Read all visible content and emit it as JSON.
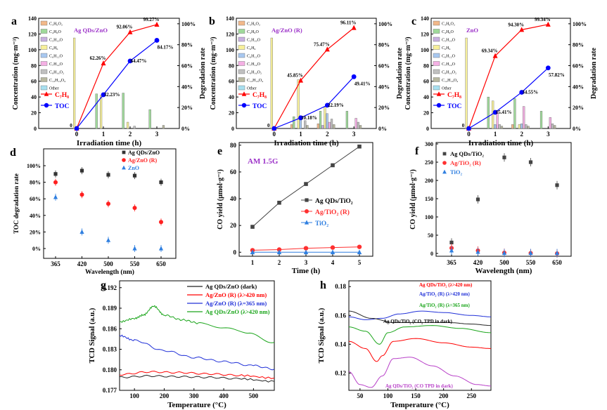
{
  "colors": {
    "red": "#ff0000",
    "blue": "#0000ff",
    "black": "#222222",
    "green": "#1aa51a",
    "purple": "#b840c8",
    "grey": "#555555",
    "lightblue": "#2f7fe0",
    "pink": "#e84a4a"
  },
  "chart_data": [
    {
      "id": "a",
      "letter": "a",
      "type": "bar",
      "title": "Ag QDs/ZnO",
      "title_color": "#9b30c8",
      "xlabel": "Irradiation time (h)",
      "ylabel": "Concentration (mg·m⁻³)",
      "y2label": "Degradation rate",
      "categories": [
        "0",
        "1",
        "2",
        "3"
      ],
      "ylim": [
        0,
        140
      ],
      "yticks": [
        0,
        20,
        40,
        60,
        80,
        100,
        120,
        140
      ],
      "y2ticks": [
        "0%",
        "20%",
        "40%",
        "60%",
        "80%",
        "100%"
      ],
      "legend": [
        "C₃H₆O₂",
        "C₄H₈O",
        "C₅H₁₀O",
        "C₆H₆",
        "C₆H₁₂O",
        "C₇H₁₄O",
        "C₈H₁₆O₂",
        "C₁₂H₁₆O₄",
        "Other"
      ],
      "bar_colors": [
        "#f2b88a",
        "#9fd99a",
        "#c8b0e0",
        "#f7f09a",
        "#a8c8f0",
        "#f4b0e4",
        "#c0c0c0",
        "#b8b8a0",
        "#a8e0f0"
      ],
      "bars": [
        [
          0,
          0,
          0,
          115,
          0,
          0,
          0,
          0,
          0
        ],
        [
          0,
          44,
          0,
          42,
          0,
          0,
          0,
          0,
          0
        ],
        [
          0,
          45,
          0,
          8,
          0,
          0,
          3,
          0,
          0
        ],
        [
          0,
          24,
          0,
          0,
          0,
          0,
          0,
          4,
          0
        ]
      ],
      "line_legend": [
        "C₇H₈",
        "TOC"
      ],
      "c7h8": [
        0,
        62.26,
        92.06,
        99.27
      ],
      "c7h8_labels": [
        "0",
        "62.26%",
        "92.06%",
        "99.27%"
      ],
      "toc": [
        0,
        32.23,
        64.47,
        84.17
      ],
      "toc_labels": [
        "",
        "32.23%",
        "64.47%",
        "84.17%"
      ]
    },
    {
      "id": "b",
      "letter": "b",
      "type": "bar",
      "title": "Ag/ZnO (R)",
      "title_color": "#9b30c8",
      "xlabel": "Irradiation time (h)",
      "ylabel": "Concentration (mg·m⁻³)",
      "y2label": "Degradation rate",
      "categories": [
        "0",
        "1",
        "2",
        "3"
      ],
      "ylim": [
        0,
        140
      ],
      "yticks": [
        0,
        20,
        40,
        60,
        80,
        100,
        120,
        140
      ],
      "y2ticks": [
        "0%",
        "20%",
        "40%",
        "60%",
        "80%",
        "100%"
      ],
      "legend": [
        "C₃H₆O₂",
        "C₄H₈O",
        "C₅H₁₀O",
        "C₆H₆",
        "C₆H₁₂O",
        "C₇H₁₄O",
        "C₈H₁₆O₂",
        "C₁₂H₁₆O₄",
        "Other"
      ],
      "bar_colors": [
        "#f2b88a",
        "#9fd99a",
        "#c8b0e0",
        "#f7f09a",
        "#a8c8f0",
        "#f4b0e4",
        "#c0c0c0",
        "#b8b8a0",
        "#a8e0f0"
      ],
      "bars": [
        [
          0,
          0,
          0,
          115,
          0,
          0,
          0,
          0,
          0
        ],
        [
          5,
          15,
          0,
          62,
          16,
          0,
          10,
          4,
          0
        ],
        [
          6,
          22,
          4,
          27,
          19,
          8,
          12,
          5,
          0
        ],
        [
          0,
          22,
          0,
          0,
          0,
          13,
          8,
          4,
          0
        ]
      ],
      "line_legend": [
        "C₇H₈",
        "TOC"
      ],
      "c7h8": [
        0,
        45.85,
        75.47,
        96.11
      ],
      "c7h8_labels": [
        "0",
        "45.85%",
        "75.47%",
        "96.11%"
      ],
      "toc": [
        0,
        10.18,
        22.19,
        49.41
      ],
      "toc_labels": [
        "",
        "10.18%",
        "22.19%",
        "49.41%"
      ]
    },
    {
      "id": "c",
      "letter": "c",
      "type": "bar",
      "title": "ZnO",
      "title_color": "#9b30c8",
      "xlabel": "Irradiation time (h)",
      "ylabel": "Concentration (mg·m⁻³)",
      "y2label": "Degradation rate",
      "categories": [
        "0",
        "1",
        "2",
        "3"
      ],
      "ylim": [
        0,
        140
      ],
      "yticks": [
        0,
        20,
        40,
        60,
        80,
        100,
        120,
        140
      ],
      "y2ticks": [
        "0%",
        "20%",
        "40%",
        "60%",
        "80%",
        "100%"
      ],
      "legend": [
        "C₃H₆O₂",
        "C₄H₈O",
        "C₅H₁₀O",
        "C₆H₆",
        "C₆H₁₂O",
        "C₇H₁₄O",
        "C₈H₁₆O₂",
        "C₁₂H₁₆O₄",
        "Other"
      ],
      "bar_colors": [
        "#f2b88a",
        "#9fd99a",
        "#c8b0e0",
        "#f7f09a",
        "#a8c8f0",
        "#f4b0e4",
        "#c0c0c0",
        "#b8b8a0",
        "#a8e0f0"
      ],
      "bars": [
        [
          0,
          0,
          0,
          115,
          0,
          0,
          0,
          0,
          0
        ],
        [
          0,
          40,
          0,
          35,
          5,
          22,
          5,
          3,
          0
        ],
        [
          5,
          38,
          0,
          5,
          6,
          28,
          5,
          3,
          0
        ],
        [
          0,
          22,
          0,
          0,
          0,
          14,
          6,
          4,
          0
        ]
      ],
      "line_legend": [
        "C₇H₈",
        "TOC"
      ],
      "c7h8": [
        0,
        69.34,
        94.3,
        99.34
      ],
      "c7h8_labels": [
        "0",
        "69.34%",
        "94.30%",
        "99.34%"
      ],
      "toc": [
        0,
        15.41,
        34.55,
        57.82
      ],
      "toc_labels": [
        "",
        "15.41%",
        "34.55%",
        "57.82%"
      ]
    },
    {
      "id": "d",
      "letter": "d",
      "type": "scatter",
      "xlabel": "Wavelength (nm)",
      "ylabel": "TOC degradation rate",
      "categories": [
        "365",
        "420",
        "500",
        "550",
        "650"
      ],
      "ylim": [
        0,
        100
      ],
      "yticks": [
        "0%",
        "20%",
        "40%",
        "60%",
        "80%",
        "100%"
      ],
      "series": [
        {
          "name": "Ag QDs/ZnO",
          "marker": "square",
          "color": "#333333",
          "values": [
            90,
            94,
            89,
            88,
            80
          ]
        },
        {
          "name": "Ag/ZnO (R)",
          "marker": "circle",
          "color": "#ff2020",
          "values": [
            80,
            65,
            54,
            49,
            32
          ]
        },
        {
          "name": "ZnO",
          "marker": "triangle",
          "color": "#2f7fe0",
          "values": [
            62,
            20,
            10,
            0,
            0
          ]
        }
      ]
    },
    {
      "id": "e",
      "letter": "e",
      "type": "line",
      "title": "AM 1.5G",
      "title_color": "#9b30c8",
      "xlabel": "Time (h)",
      "ylabel": "CO yield (μmol·g⁻¹)",
      "x": [
        1,
        2,
        3,
        4,
        5
      ],
      "xlim": [
        0.5,
        5.5
      ],
      "ylim": [
        -3,
        82
      ],
      "yticks": [
        0,
        20,
        40,
        60,
        80
      ],
      "series": [
        {
          "name": "Ag QDs/TiO₂",
          "marker": "square",
          "color": "#444444",
          "values": [
            19,
            37,
            51,
            65,
            79
          ]
        },
        {
          "name": "Ag/TiO₂ (R)",
          "marker": "circle",
          "color": "#ff3030",
          "values": [
            1.5,
            2,
            3,
            3.5,
            4
          ]
        },
        {
          "name": "TiO₂",
          "marker": "triangle",
          "color": "#2f7fe0",
          "values": [
            0,
            0,
            0,
            0,
            0
          ]
        }
      ]
    },
    {
      "id": "f",
      "letter": "f",
      "type": "scatter",
      "xlabel": "Wavelength (nm)",
      "ylabel": "CO yield (μmol·g⁻¹)",
      "categories": [
        "365",
        "420",
        "500",
        "550",
        "650"
      ],
      "ylim": [
        0,
        300
      ],
      "yticks": [
        0,
        50,
        100,
        150,
        200,
        250,
        300
      ],
      "series": [
        {
          "name": "Ag QDs/TiO₂",
          "marker": "square",
          "color": "#444444",
          "values": [
            30,
            148,
            263,
            250,
            187
          ]
        },
        {
          "name": "Ag/TiO₂ (R)",
          "marker": "circle",
          "color": "#ff3030",
          "values": [
            15,
            8,
            2,
            1,
            0
          ]
        },
        {
          "name": "TiO₂",
          "marker": "triangle",
          "color": "#2f7fe0",
          "values": [
            8,
            4,
            1,
            1,
            1
          ]
        }
      ]
    },
    {
      "id": "g",
      "letter": "g",
      "type": "line",
      "xlabel": "Temperature (°C)",
      "ylabel": "TCD Signal (a.u.)",
      "xlim": [
        50,
        570
      ],
      "xticks": [
        100,
        200,
        300,
        400,
        500
      ],
      "ylim": [
        0.177,
        0.193
      ],
      "yticks": [
        "0.177",
        "0.180",
        "0.183",
        "0.186",
        "0.189",
        "0.192"
      ],
      "series": [
        {
          "name": "Ag QDs/ZnO (dark)",
          "color": "#222222",
          "x": [
            50,
            150,
            250,
            350,
            450,
            570
          ],
          "y": [
            0.1789,
            0.1791,
            0.179,
            0.1789,
            0.1787,
            0.1783
          ]
        },
        {
          "name": "Ag/ZnO (R) (λ>420 nm)",
          "color": "#ff0000",
          "x": [
            50,
            150,
            250,
            350,
            450,
            570
          ],
          "y": [
            0.1793,
            0.1797,
            0.1796,
            0.1794,
            0.1792,
            0.1788
          ]
        },
        {
          "name": "Ag/ZnO (R) (λ=365 nm)",
          "color": "#2030d8",
          "x": [
            50,
            100,
            200,
            300,
            400,
            500,
            570
          ],
          "y": [
            0.185,
            0.1843,
            0.1828,
            0.1818,
            0.1812,
            0.1806,
            0.1801
          ]
        },
        {
          "name": "Ag QDs/ZnO (λ>420 nm)",
          "color": "#1aa51a",
          "x": [
            50,
            100,
            130,
            165,
            200,
            260,
            320,
            400,
            480,
            570
          ],
          "y": [
            0.187,
            0.1875,
            0.188,
            0.1893,
            0.188,
            0.1873,
            0.1868,
            0.1862,
            0.1853,
            0.184
          ]
        }
      ]
    },
    {
      "id": "h",
      "letter": "h",
      "type": "line",
      "xlabel": "Temperature (°C)",
      "ylabel": "TCD Signal (a.u.)",
      "xlim": [
        30,
        285
      ],
      "xticks": [
        50,
        100,
        150,
        200,
        250
      ],
      "ylim": [
        0.108,
        0.184
      ],
      "yticks": [
        "0.12",
        "0.14",
        "0.16",
        "0.18"
      ],
      "series": [
        {
          "name": "Ag QDs/TiO₂ (λ>420 nm)",
          "color": "#ff0000",
          "x": [
            30,
            60,
            80,
            90,
            110,
            150,
            200,
            250,
            285
          ],
          "y": [
            0.142,
            0.137,
            0.128,
            0.132,
            0.142,
            0.144,
            0.141,
            0.138,
            0.137
          ]
        },
        {
          "name": "Ag/TiO₂ (R) (λ>420 nm)",
          "color": "#2030d8",
          "x": [
            30,
            60,
            90,
            120,
            160,
            200,
            250,
            285
          ],
          "y": [
            0.159,
            0.157,
            0.158,
            0.161,
            0.163,
            0.162,
            0.16,
            0.159
          ]
        },
        {
          "name": "Ag/TiO₂ (R) (λ=365 nm)",
          "color": "#1aa51a",
          "x": [
            30,
            60,
            85,
            100,
            130,
            180,
            230,
            285
          ],
          "y": [
            0.152,
            0.149,
            0.14,
            0.148,
            0.152,
            0.153,
            0.151,
            0.148
          ]
        },
        {
          "name": "Ag QDs/TiO₂ (CO₂ TPD in dark)",
          "color": "#222222",
          "x": [
            30,
            70,
            110,
            160,
            210,
            250,
            285
          ],
          "y": [
            0.163,
            0.158,
            0.155,
            0.155,
            0.155,
            0.154,
            0.153
          ]
        },
        {
          "name": "Ag QDs/TiO₂ (CO TPD in dark)",
          "color": "#b840c8",
          "x": [
            30,
            50,
            70,
            90,
            110,
            140,
            180,
            220,
            260,
            285
          ],
          "y": [
            0.121,
            0.112,
            0.11,
            0.118,
            0.13,
            0.131,
            0.125,
            0.118,
            0.112,
            0.111
          ]
        }
      ]
    }
  ]
}
